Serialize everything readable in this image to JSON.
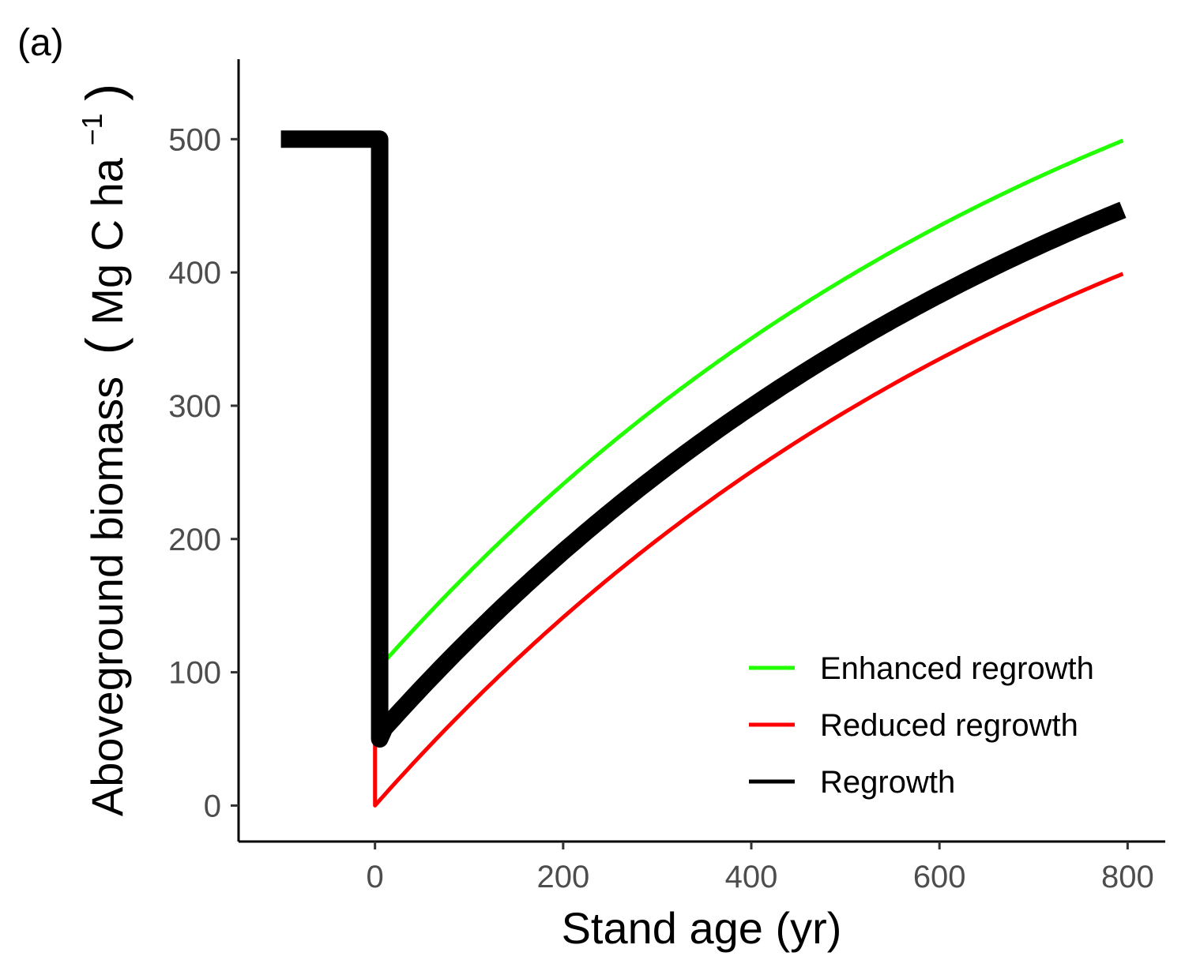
{
  "panel_label": "(a)",
  "chart_data": {
    "type": "line",
    "xlabel": "Stand age (yr)",
    "ylabel_main": "Aboveground biomass",
    "ylabel_unit_base": "Mg C ha",
    "ylabel_unit_sup": "−1",
    "xlim": [
      -145,
      840
    ],
    "ylim": [
      -27,
      560
    ],
    "x_ticks": [
      0,
      200,
      400,
      600,
      800
    ],
    "x_tick_labels": [
      "0",
      "200",
      "400",
      "600",
      "800"
    ],
    "y_ticks": [
      0,
      100,
      200,
      300,
      400,
      500
    ],
    "y_tick_labels": [
      "0",
      "100",
      "200",
      "300",
      "400",
      "500"
    ],
    "grid": false,
    "legend_position": "bottom-right",
    "series": [
      {
        "name": "Enhanced regrowth",
        "color": "#22ff00",
        "x": [
          0,
          50,
          100,
          150,
          200,
          250,
          300,
          350,
          400,
          450,
          500,
          550,
          600,
          650,
          700,
          750,
          795
        ],
        "y": [
          100,
          150,
          196,
          237,
          275,
          311,
          343,
          373,
          401,
          426,
          449,
          470,
          489,
          506,
          521,
          534,
          499
        ]
      },
      {
        "name": "Reduced regrowth",
        "color": "#ff0000",
        "x": [
          0,
          0,
          50,
          100,
          150,
          200,
          250,
          300,
          350,
          400,
          450,
          500,
          550,
          600,
          650,
          700,
          750,
          795
        ],
        "y": [
          50,
          0,
          51,
          96,
          136,
          173,
          207,
          238,
          267,
          293,
          317,
          339,
          359,
          376,
          391,
          404,
          414,
          399
        ],
        "y_fix": [
          50,
          0,
          47,
          92,
          133,
          170,
          204,
          236,
          265,
          291,
          315,
          337,
          356,
          373,
          388,
          393,
          396,
          399
        ]
      },
      {
        "name": "Regrowth",
        "color": "#000000",
        "x": [
          -100,
          0,
          0,
          50,
          100,
          150,
          200,
          250,
          300,
          350,
          400,
          450,
          500,
          550,
          600,
          650,
          700,
          750,
          795
        ],
        "y": [
          500,
          500,
          50,
          100,
          145,
          186,
          224,
          259,
          291,
          320,
          347,
          372,
          394,
          414,
          433,
          449,
          464,
          476,
          447
        ]
      }
    ]
  }
}
